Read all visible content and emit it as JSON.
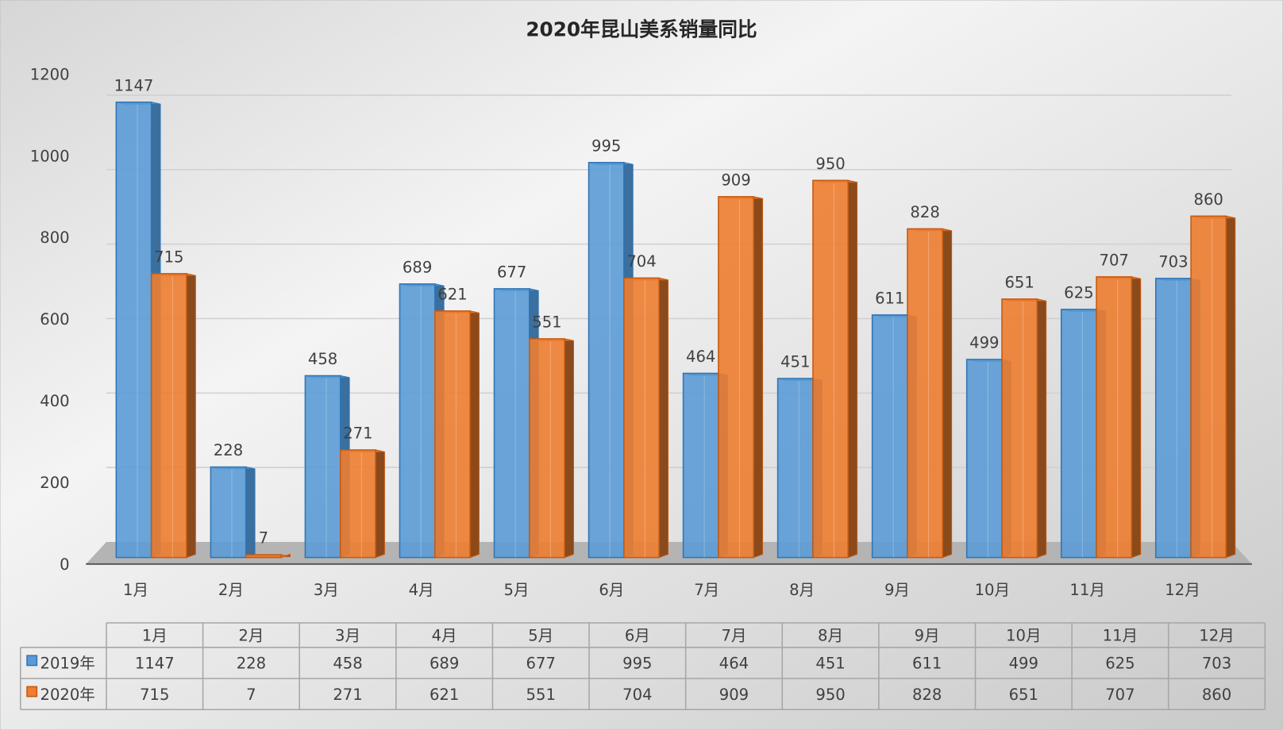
{
  "chart_data": {
    "type": "bar",
    "title": "2020年昆山美系销量同比",
    "categories": [
      "1月",
      "2月",
      "3月",
      "4月",
      "5月",
      "6月",
      "7月",
      "8月",
      "9月",
      "10月",
      "11月",
      "12月"
    ],
    "series": [
      {
        "name": "2019年",
        "color": "#5B9BD5",
        "values": [
          1147,
          228,
          458,
          689,
          677,
          995,
          464,
          451,
          611,
          499,
          625,
          703
        ]
      },
      {
        "name": "2020年",
        "color": "#ED7D31",
        "values": [
          715,
          7,
          271,
          621,
          551,
          704,
          909,
          950,
          828,
          651,
          707,
          860
        ]
      }
    ],
    "ylim": [
      0,
      1200
    ],
    "yticks": [
      0,
      200,
      400,
      600,
      800,
      1000,
      1200
    ],
    "xlabel": "",
    "ylabel": "",
    "grid": true,
    "legend": "data-table-bottom",
    "data_table": true
  }
}
